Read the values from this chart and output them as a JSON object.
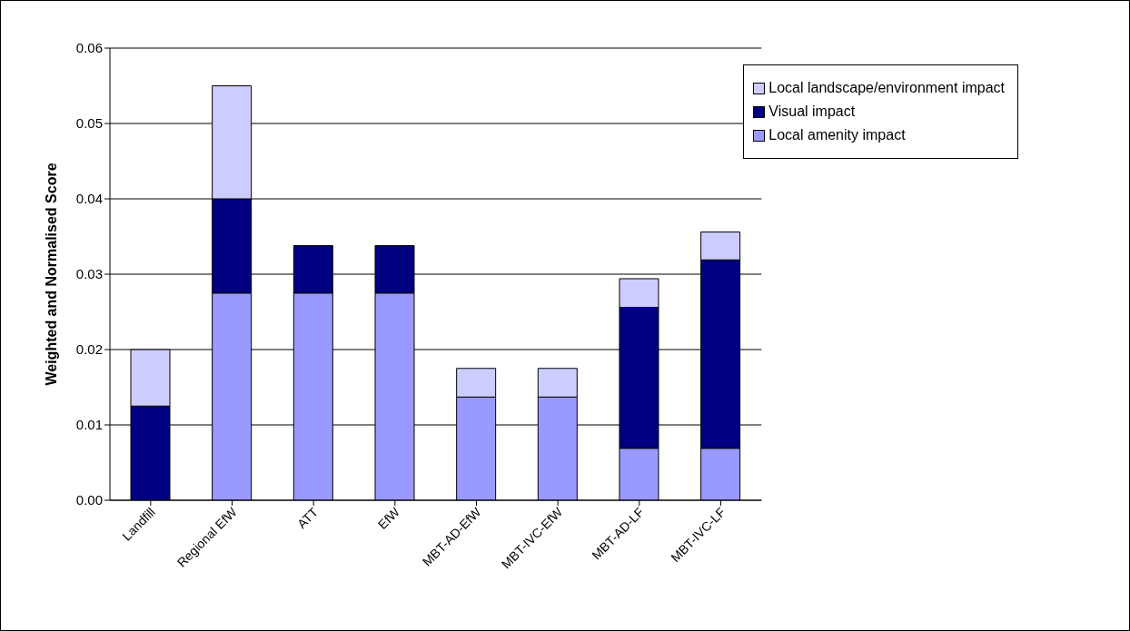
{
  "chart_data": {
    "type": "bar",
    "stacked": true,
    "ylabel": "Weighted and Normalised Score",
    "categories": [
      "Landfill",
      "Regional EfW",
      "ATT",
      "EfW",
      "MBT-AD-EfW",
      "MBT-IVC-EfW",
      "MBT-AD-LF",
      "MBT-IVC-LF"
    ],
    "series": [
      {
        "name": "Local amenity impact",
        "color": "#9999ff",
        "values": [
          null,
          0.0275,
          0.0275,
          0.0275,
          0.0137,
          0.0137,
          0.0069,
          0.0069
        ]
      },
      {
        "name": "Visual impact",
        "color": "#000080",
        "values": [
          0.0125,
          0.0125,
          0.0063,
          0.0063,
          null,
          null,
          0.0187,
          0.025
        ]
      },
      {
        "name": "Local landscape/environment impact",
        "color": "#ccccff",
        "values": [
          0.0075,
          0.015,
          null,
          null,
          0.0038,
          0.0038,
          0.0038,
          0.0037
        ]
      }
    ],
    "ylim": [
      0,
      0.06
    ],
    "yticks": [
      {
        "value": 0,
        "label": "0.00"
      },
      {
        "value": 0.01,
        "label": "0.01"
      },
      {
        "value": 0.02,
        "label": "0.02"
      },
      {
        "value": 0.03,
        "label": "0.03"
      },
      {
        "value": 0.04,
        "label": "0.04"
      },
      {
        "value": 0.05,
        "label": "0.05"
      },
      {
        "value": 0.06,
        "label": "0.06"
      }
    ],
    "grid": "y",
    "legend": "top right"
  }
}
